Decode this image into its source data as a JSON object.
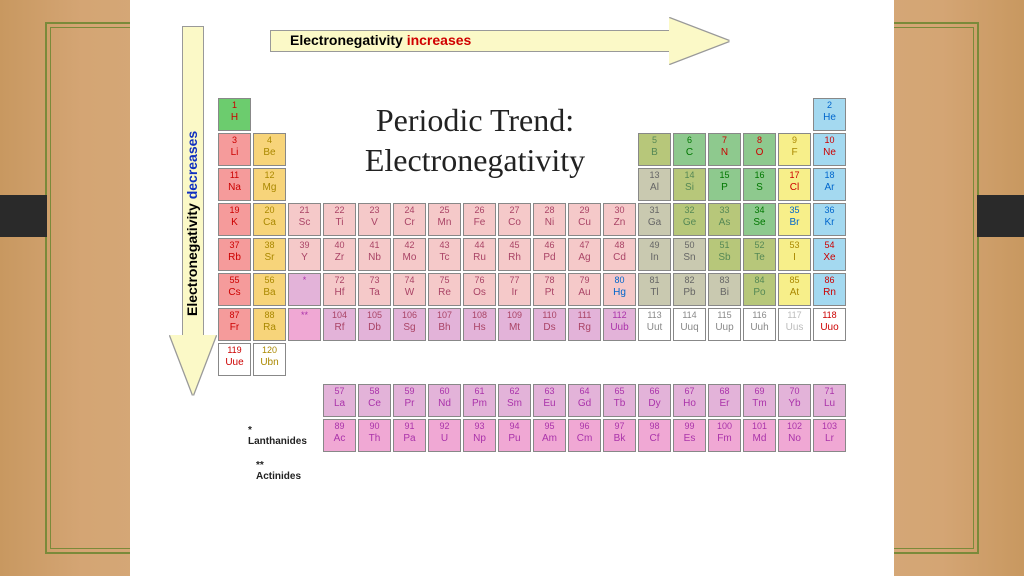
{
  "title": "Periodic Trend:\nElectronegativity",
  "arrows": {
    "top": {
      "word1": "Electronegativity ",
      "word2": "increases",
      "color1": "#000000",
      "color2": "#d00000"
    },
    "side": {
      "word1": "Electronegativity ",
      "word2": "decreases",
      "color1": "#000000",
      "color2": "#1030c0"
    }
  },
  "cell": {
    "w": 35,
    "h": 35
  },
  "colors": {
    "H": "#6ccc6e",
    "alkali": "#f59b9b",
    "alkearth": "#f7d47a",
    "tm1": "#f5c9c9",
    "tm2": "#e3b3d9",
    "metalloid": "#b7c77a",
    "poor": "#c9c9b0",
    "nonmetal": "#8ec98e",
    "halogen": "#f7ef8a",
    "noble": "#a4d9f0",
    "lan": "#e3b3d9",
    "act": "#f0a8d4",
    "white": "#ffffff"
  },
  "elements": [
    {
      "n": 1,
      "s": "H",
      "r": 0,
      "c": 0,
      "col": "H",
      "tc": "#c00"
    },
    {
      "n": 2,
      "s": "He",
      "r": 0,
      "c": 17,
      "col": "noble",
      "tc": "#06c"
    },
    {
      "n": 3,
      "s": "Li",
      "r": 1,
      "c": 0,
      "col": "alkali",
      "tc": "#c00"
    },
    {
      "n": 4,
      "s": "Be",
      "r": 1,
      "c": 1,
      "col": "alkearth",
      "tc": "#a80"
    },
    {
      "n": 5,
      "s": "B",
      "r": 1,
      "c": 12,
      "col": "metalloid",
      "tc": "#585"
    },
    {
      "n": 6,
      "s": "C",
      "r": 1,
      "c": 13,
      "col": "nonmetal",
      "tc": "#070"
    },
    {
      "n": 7,
      "s": "N",
      "r": 1,
      "c": 14,
      "col": "nonmetal",
      "tc": "#c00"
    },
    {
      "n": 8,
      "s": "O",
      "r": 1,
      "c": 15,
      "col": "nonmetal",
      "tc": "#c00"
    },
    {
      "n": 9,
      "s": "F",
      "r": 1,
      "c": 16,
      "col": "halogen",
      "tc": "#a80"
    },
    {
      "n": 10,
      "s": "Ne",
      "r": 1,
      "c": 17,
      "col": "noble",
      "tc": "#c00"
    },
    {
      "n": 11,
      "s": "Na",
      "r": 2,
      "c": 0,
      "col": "alkali",
      "tc": "#c00"
    },
    {
      "n": 12,
      "s": "Mg",
      "r": 2,
      "c": 1,
      "col": "alkearth",
      "tc": "#a80"
    },
    {
      "n": 13,
      "s": "Al",
      "r": 2,
      "c": 12,
      "col": "poor",
      "tc": "#666"
    },
    {
      "n": 14,
      "s": "Si",
      "r": 2,
      "c": 13,
      "col": "metalloid",
      "tc": "#585"
    },
    {
      "n": 15,
      "s": "P",
      "r": 2,
      "c": 14,
      "col": "nonmetal",
      "tc": "#070"
    },
    {
      "n": 16,
      "s": "S",
      "r": 2,
      "c": 15,
      "col": "nonmetal",
      "tc": "#070"
    },
    {
      "n": 17,
      "s": "Cl",
      "r": 2,
      "c": 16,
      "col": "halogen",
      "tc": "#c00"
    },
    {
      "n": 18,
      "s": "Ar",
      "r": 2,
      "c": 17,
      "col": "noble",
      "tc": "#06c"
    },
    {
      "n": 19,
      "s": "K",
      "r": 3,
      "c": 0,
      "col": "alkali",
      "tc": "#c00"
    },
    {
      "n": 20,
      "s": "Ca",
      "r": 3,
      "c": 1,
      "col": "alkearth",
      "tc": "#a80"
    },
    {
      "n": 21,
      "s": "Sc",
      "r": 3,
      "c": 2,
      "col": "tm1",
      "tc": "#a46"
    },
    {
      "n": 22,
      "s": "Ti",
      "r": 3,
      "c": 3,
      "col": "tm1",
      "tc": "#a46"
    },
    {
      "n": 23,
      "s": "V",
      "r": 3,
      "c": 4,
      "col": "tm1",
      "tc": "#a46"
    },
    {
      "n": 24,
      "s": "Cr",
      "r": 3,
      "c": 5,
      "col": "tm1",
      "tc": "#a46"
    },
    {
      "n": 25,
      "s": "Mn",
      "r": 3,
      "c": 6,
      "col": "tm1",
      "tc": "#a46"
    },
    {
      "n": 26,
      "s": "Fe",
      "r": 3,
      "c": 7,
      "col": "tm1",
      "tc": "#a46"
    },
    {
      "n": 27,
      "s": "Co",
      "r": 3,
      "c": 8,
      "col": "tm1",
      "tc": "#a46"
    },
    {
      "n": 28,
      "s": "Ni",
      "r": 3,
      "c": 9,
      "col": "tm1",
      "tc": "#a46"
    },
    {
      "n": 29,
      "s": "Cu",
      "r": 3,
      "c": 10,
      "col": "tm1",
      "tc": "#a46"
    },
    {
      "n": 30,
      "s": "Zn",
      "r": 3,
      "c": 11,
      "col": "tm1",
      "tc": "#a46"
    },
    {
      "n": 31,
      "s": "Ga",
      "r": 3,
      "c": 12,
      "col": "poor",
      "tc": "#666"
    },
    {
      "n": 32,
      "s": "Ge",
      "r": 3,
      "c": 13,
      "col": "metalloid",
      "tc": "#585"
    },
    {
      "n": 33,
      "s": "As",
      "r": 3,
      "c": 14,
      "col": "metalloid",
      "tc": "#585"
    },
    {
      "n": 34,
      "s": "Se",
      "r": 3,
      "c": 15,
      "col": "nonmetal",
      "tc": "#070"
    },
    {
      "n": 35,
      "s": "Br",
      "r": 3,
      "c": 16,
      "col": "halogen",
      "tc": "#06c"
    },
    {
      "n": 36,
      "s": "Kr",
      "r": 3,
      "c": 17,
      "col": "noble",
      "tc": "#06c"
    },
    {
      "n": 37,
      "s": "Rb",
      "r": 4,
      "c": 0,
      "col": "alkali",
      "tc": "#c00"
    },
    {
      "n": 38,
      "s": "Sr",
      "r": 4,
      "c": 1,
      "col": "alkearth",
      "tc": "#a80"
    },
    {
      "n": 39,
      "s": "Y",
      "r": 4,
      "c": 2,
      "col": "tm1",
      "tc": "#a46"
    },
    {
      "n": 40,
      "s": "Zr",
      "r": 4,
      "c": 3,
      "col": "tm1",
      "tc": "#a46"
    },
    {
      "n": 41,
      "s": "Nb",
      "r": 4,
      "c": 4,
      "col": "tm1",
      "tc": "#a46"
    },
    {
      "n": 42,
      "s": "Mo",
      "r": 4,
      "c": 5,
      "col": "tm1",
      "tc": "#a46"
    },
    {
      "n": 43,
      "s": "Tc",
      "r": 4,
      "c": 6,
      "col": "tm1",
      "tc": "#a46"
    },
    {
      "n": 44,
      "s": "Ru",
      "r": 4,
      "c": 7,
      "col": "tm1",
      "tc": "#a46"
    },
    {
      "n": 45,
      "s": "Rh",
      "r": 4,
      "c": 8,
      "col": "tm1",
      "tc": "#a46"
    },
    {
      "n": 46,
      "s": "Pd",
      "r": 4,
      "c": 9,
      "col": "tm1",
      "tc": "#a46"
    },
    {
      "n": 47,
      "s": "Ag",
      "r": 4,
      "c": 10,
      "col": "tm1",
      "tc": "#a46"
    },
    {
      "n": 48,
      "s": "Cd",
      "r": 4,
      "c": 11,
      "col": "tm1",
      "tc": "#a46"
    },
    {
      "n": 49,
      "s": "In",
      "r": 4,
      "c": 12,
      "col": "poor",
      "tc": "#666"
    },
    {
      "n": 50,
      "s": "Sn",
      "r": 4,
      "c": 13,
      "col": "poor",
      "tc": "#666"
    },
    {
      "n": 51,
      "s": "Sb",
      "r": 4,
      "c": 14,
      "col": "metalloid",
      "tc": "#585"
    },
    {
      "n": 52,
      "s": "Te",
      "r": 4,
      "c": 15,
      "col": "metalloid",
      "tc": "#585"
    },
    {
      "n": 53,
      "s": "I",
      "r": 4,
      "c": 16,
      "col": "halogen",
      "tc": "#a80"
    },
    {
      "n": 54,
      "s": "Xe",
      "r": 4,
      "c": 17,
      "col": "noble",
      "tc": "#c00"
    },
    {
      "n": 55,
      "s": "Cs",
      "r": 5,
      "c": 0,
      "col": "alkali",
      "tc": "#c00"
    },
    {
      "n": 56,
      "s": "Ba",
      "r": 5,
      "c": 1,
      "col": "alkearth",
      "tc": "#a80"
    },
    {
      "n": "*",
      "s": "",
      "r": 5,
      "c": 2,
      "col": "lan",
      "tc": "#a3a"
    },
    {
      "n": 72,
      "s": "Hf",
      "r": 5,
      "c": 3,
      "col": "tm1",
      "tc": "#a46"
    },
    {
      "n": 73,
      "s": "Ta",
      "r": 5,
      "c": 4,
      "col": "tm1",
      "tc": "#a46"
    },
    {
      "n": 74,
      "s": "W",
      "r": 5,
      "c": 5,
      "col": "tm1",
      "tc": "#a46"
    },
    {
      "n": 75,
      "s": "Re",
      "r": 5,
      "c": 6,
      "col": "tm1",
      "tc": "#a46"
    },
    {
      "n": 76,
      "s": "Os",
      "r": 5,
      "c": 7,
      "col": "tm1",
      "tc": "#a46"
    },
    {
      "n": 77,
      "s": "Ir",
      "r": 5,
      "c": 8,
      "col": "tm1",
      "tc": "#a46"
    },
    {
      "n": 78,
      "s": "Pt",
      "r": 5,
      "c": 9,
      "col": "tm1",
      "tc": "#a46"
    },
    {
      "n": 79,
      "s": "Au",
      "r": 5,
      "c": 10,
      "col": "tm1",
      "tc": "#a46"
    },
    {
      "n": 80,
      "s": "Hg",
      "r": 5,
      "c": 11,
      "col": "tm1",
      "tc": "#06c"
    },
    {
      "n": 81,
      "s": "Tl",
      "r": 5,
      "c": 12,
      "col": "poor",
      "tc": "#666"
    },
    {
      "n": 82,
      "s": "Pb",
      "r": 5,
      "c": 13,
      "col": "poor",
      "tc": "#666"
    },
    {
      "n": 83,
      "s": "Bi",
      "r": 5,
      "c": 14,
      "col": "poor",
      "tc": "#666"
    },
    {
      "n": 84,
      "s": "Po",
      "r": 5,
      "c": 15,
      "col": "metalloid",
      "tc": "#585"
    },
    {
      "n": 85,
      "s": "At",
      "r": 5,
      "c": 16,
      "col": "halogen",
      "tc": "#a80"
    },
    {
      "n": 86,
      "s": "Rn",
      "r": 5,
      "c": 17,
      "col": "noble",
      "tc": "#c00"
    },
    {
      "n": 87,
      "s": "Fr",
      "r": 6,
      "c": 0,
      "col": "alkali",
      "tc": "#c00"
    },
    {
      "n": 88,
      "s": "Ra",
      "r": 6,
      "c": 1,
      "col": "alkearth",
      "tc": "#a80"
    },
    {
      "n": "**",
      "s": "",
      "r": 6,
      "c": 2,
      "col": "act",
      "tc": "#a3a"
    },
    {
      "n": 104,
      "s": "Rf",
      "r": 6,
      "c": 3,
      "col": "tm2",
      "tc": "#a46"
    },
    {
      "n": 105,
      "s": "Db",
      "r": 6,
      "c": 4,
      "col": "tm2",
      "tc": "#a46"
    },
    {
      "n": 106,
      "s": "Sg",
      "r": 6,
      "c": 5,
      "col": "tm2",
      "tc": "#a46"
    },
    {
      "n": 107,
      "s": "Bh",
      "r": 6,
      "c": 6,
      "col": "tm2",
      "tc": "#a46"
    },
    {
      "n": 108,
      "s": "Hs",
      "r": 6,
      "c": 7,
      "col": "tm2",
      "tc": "#a46"
    },
    {
      "n": 109,
      "s": "Mt",
      "r": 6,
      "c": 8,
      "col": "tm2",
      "tc": "#a46"
    },
    {
      "n": 110,
      "s": "Ds",
      "r": 6,
      "c": 9,
      "col": "tm2",
      "tc": "#a46"
    },
    {
      "n": 111,
      "s": "Rg",
      "r": 6,
      "c": 10,
      "col": "tm2",
      "tc": "#a46"
    },
    {
      "n": 112,
      "s": "Uub",
      "r": 6,
      "c": 11,
      "col": "tm2",
      "tc": "#a3a"
    },
    {
      "n": 113,
      "s": "Uut",
      "r": 6,
      "c": 12,
      "col": "white",
      "tc": "#888"
    },
    {
      "n": 114,
      "s": "Uuq",
      "r": 6,
      "c": 13,
      "col": "white",
      "tc": "#888"
    },
    {
      "n": 115,
      "s": "Uup",
      "r": 6,
      "c": 14,
      "col": "white",
      "tc": "#888"
    },
    {
      "n": 116,
      "s": "Uuh",
      "r": 6,
      "c": 15,
      "col": "white",
      "tc": "#888"
    },
    {
      "n": 117,
      "s": "Uus",
      "r": 6,
      "c": 16,
      "col": "white",
      "tc": "#bbb"
    },
    {
      "n": 118,
      "s": "Uuo",
      "r": 6,
      "c": 17,
      "col": "white",
      "tc": "#c00"
    },
    {
      "n": 119,
      "s": "Uue",
      "r": 7,
      "c": 0,
      "col": "white",
      "tc": "#c00"
    },
    {
      "n": 120,
      "s": "Ubn",
      "r": 7,
      "c": 1,
      "col": "white",
      "tc": "#a80"
    },
    {
      "n": 57,
      "s": "La",
      "r": 9,
      "c": 3,
      "col": "lan",
      "tc": "#a3a"
    },
    {
      "n": 58,
      "s": "Ce",
      "r": 9,
      "c": 4,
      "col": "lan",
      "tc": "#a3a"
    },
    {
      "n": 59,
      "s": "Pr",
      "r": 9,
      "c": 5,
      "col": "lan",
      "tc": "#a3a"
    },
    {
      "n": 60,
      "s": "Nd",
      "r": 9,
      "c": 6,
      "col": "lan",
      "tc": "#a3a"
    },
    {
      "n": 61,
      "s": "Pm",
      "r": 9,
      "c": 7,
      "col": "lan",
      "tc": "#a3a"
    },
    {
      "n": 62,
      "s": "Sm",
      "r": 9,
      "c": 8,
      "col": "lan",
      "tc": "#a3a"
    },
    {
      "n": 63,
      "s": "Eu",
      "r": 9,
      "c": 9,
      "col": "lan",
      "tc": "#a3a"
    },
    {
      "n": 64,
      "s": "Gd",
      "r": 9,
      "c": 10,
      "col": "lan",
      "tc": "#a3a"
    },
    {
      "n": 65,
      "s": "Tb",
      "r": 9,
      "c": 11,
      "col": "lan",
      "tc": "#a3a"
    },
    {
      "n": 66,
      "s": "Dy",
      "r": 9,
      "c": 12,
      "col": "lan",
      "tc": "#a3a"
    },
    {
      "n": 67,
      "s": "Ho",
      "r": 9,
      "c": 13,
      "col": "lan",
      "tc": "#a3a"
    },
    {
      "n": 68,
      "s": "Er",
      "r": 9,
      "c": 14,
      "col": "lan",
      "tc": "#a3a"
    },
    {
      "n": 69,
      "s": "Tm",
      "r": 9,
      "c": 15,
      "col": "lan",
      "tc": "#a3a"
    },
    {
      "n": 70,
      "s": "Yb",
      "r": 9,
      "c": 16,
      "col": "lan",
      "tc": "#a3a"
    },
    {
      "n": 71,
      "s": "Lu",
      "r": 9,
      "c": 17,
      "col": "lan",
      "tc": "#a3a"
    },
    {
      "n": 89,
      "s": "Ac",
      "r": 10,
      "c": 3,
      "col": "act",
      "tc": "#a3a"
    },
    {
      "n": 90,
      "s": "Th",
      "r": 10,
      "c": 4,
      "col": "act",
      "tc": "#a3a"
    },
    {
      "n": 91,
      "s": "Pa",
      "r": 10,
      "c": 5,
      "col": "act",
      "tc": "#a3a"
    },
    {
      "n": 92,
      "s": "U",
      "r": 10,
      "c": 6,
      "col": "act",
      "tc": "#a3a"
    },
    {
      "n": 93,
      "s": "Np",
      "r": 10,
      "c": 7,
      "col": "act",
      "tc": "#a3a"
    },
    {
      "n": 94,
      "s": "Pu",
      "r": 10,
      "c": 8,
      "col": "act",
      "tc": "#a3a"
    },
    {
      "n": 95,
      "s": "Am",
      "r": 10,
      "c": 9,
      "col": "act",
      "tc": "#a3a"
    },
    {
      "n": 96,
      "s": "Cm",
      "r": 10,
      "c": 10,
      "col": "act",
      "tc": "#a3a"
    },
    {
      "n": 97,
      "s": "Bk",
      "r": 10,
      "c": 11,
      "col": "act",
      "tc": "#a3a"
    },
    {
      "n": 98,
      "s": "Cf",
      "r": 10,
      "c": 12,
      "col": "act",
      "tc": "#a3a"
    },
    {
      "n": 99,
      "s": "Es",
      "r": 10,
      "c": 13,
      "col": "act",
      "tc": "#a3a"
    },
    {
      "n": 100,
      "s": "Fm",
      "r": 10,
      "c": 14,
      "col": "act",
      "tc": "#a3a"
    },
    {
      "n": 101,
      "s": "Md",
      "r": 10,
      "c": 15,
      "col": "act",
      "tc": "#a3a"
    },
    {
      "n": 102,
      "s": "No",
      "r": 10,
      "c": 16,
      "col": "act",
      "tc": "#a3a"
    },
    {
      "n": 103,
      "s": "Lr",
      "r": 10,
      "c": 17,
      "col": "act",
      "tc": "#a3a"
    }
  ],
  "block_labels": {
    "lan": "* Lanthanides",
    "act": "** Actinides"
  }
}
